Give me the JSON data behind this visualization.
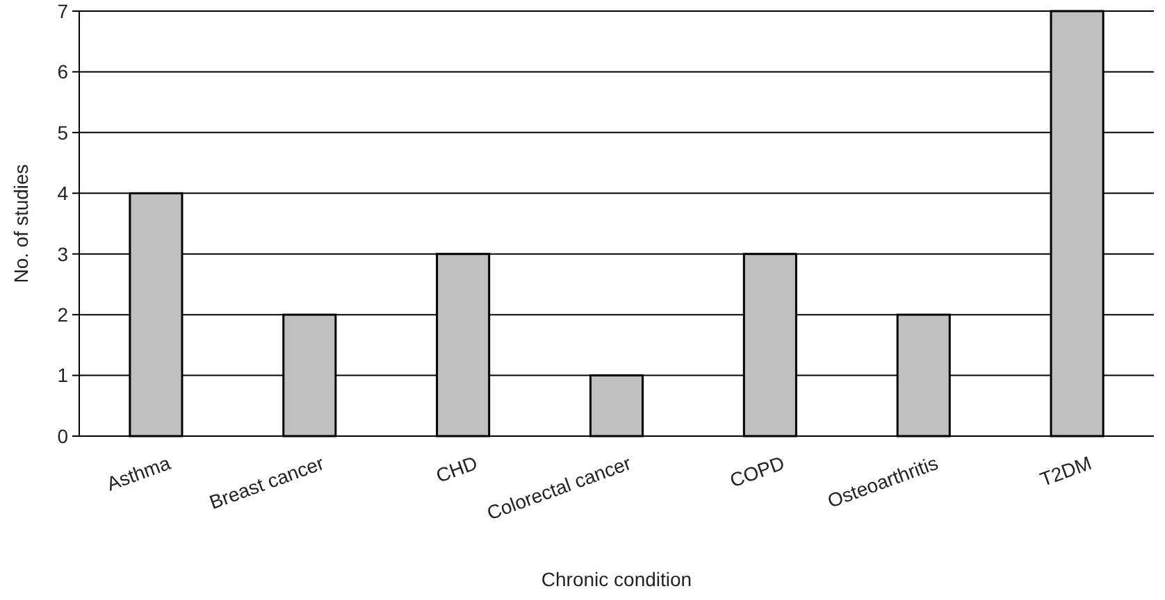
{
  "chart_data": {
    "type": "bar",
    "xlabel": "Chronic condition",
    "ylabel": "No. of studies",
    "categories": [
      "Asthma",
      "Breast cancer",
      "CHD",
      "Colorectal cancer",
      "COPD",
      "Osteoarthritis",
      "T2DM"
    ],
    "values": [
      4,
      2,
      3,
      1,
      3,
      2,
      7
    ],
    "color": "#c0c0c0",
    "ylim": [
      0,
      7
    ],
    "yticks": [
      0,
      1,
      2,
      3,
      4,
      5,
      6,
      7
    ],
    "grid": "y"
  }
}
